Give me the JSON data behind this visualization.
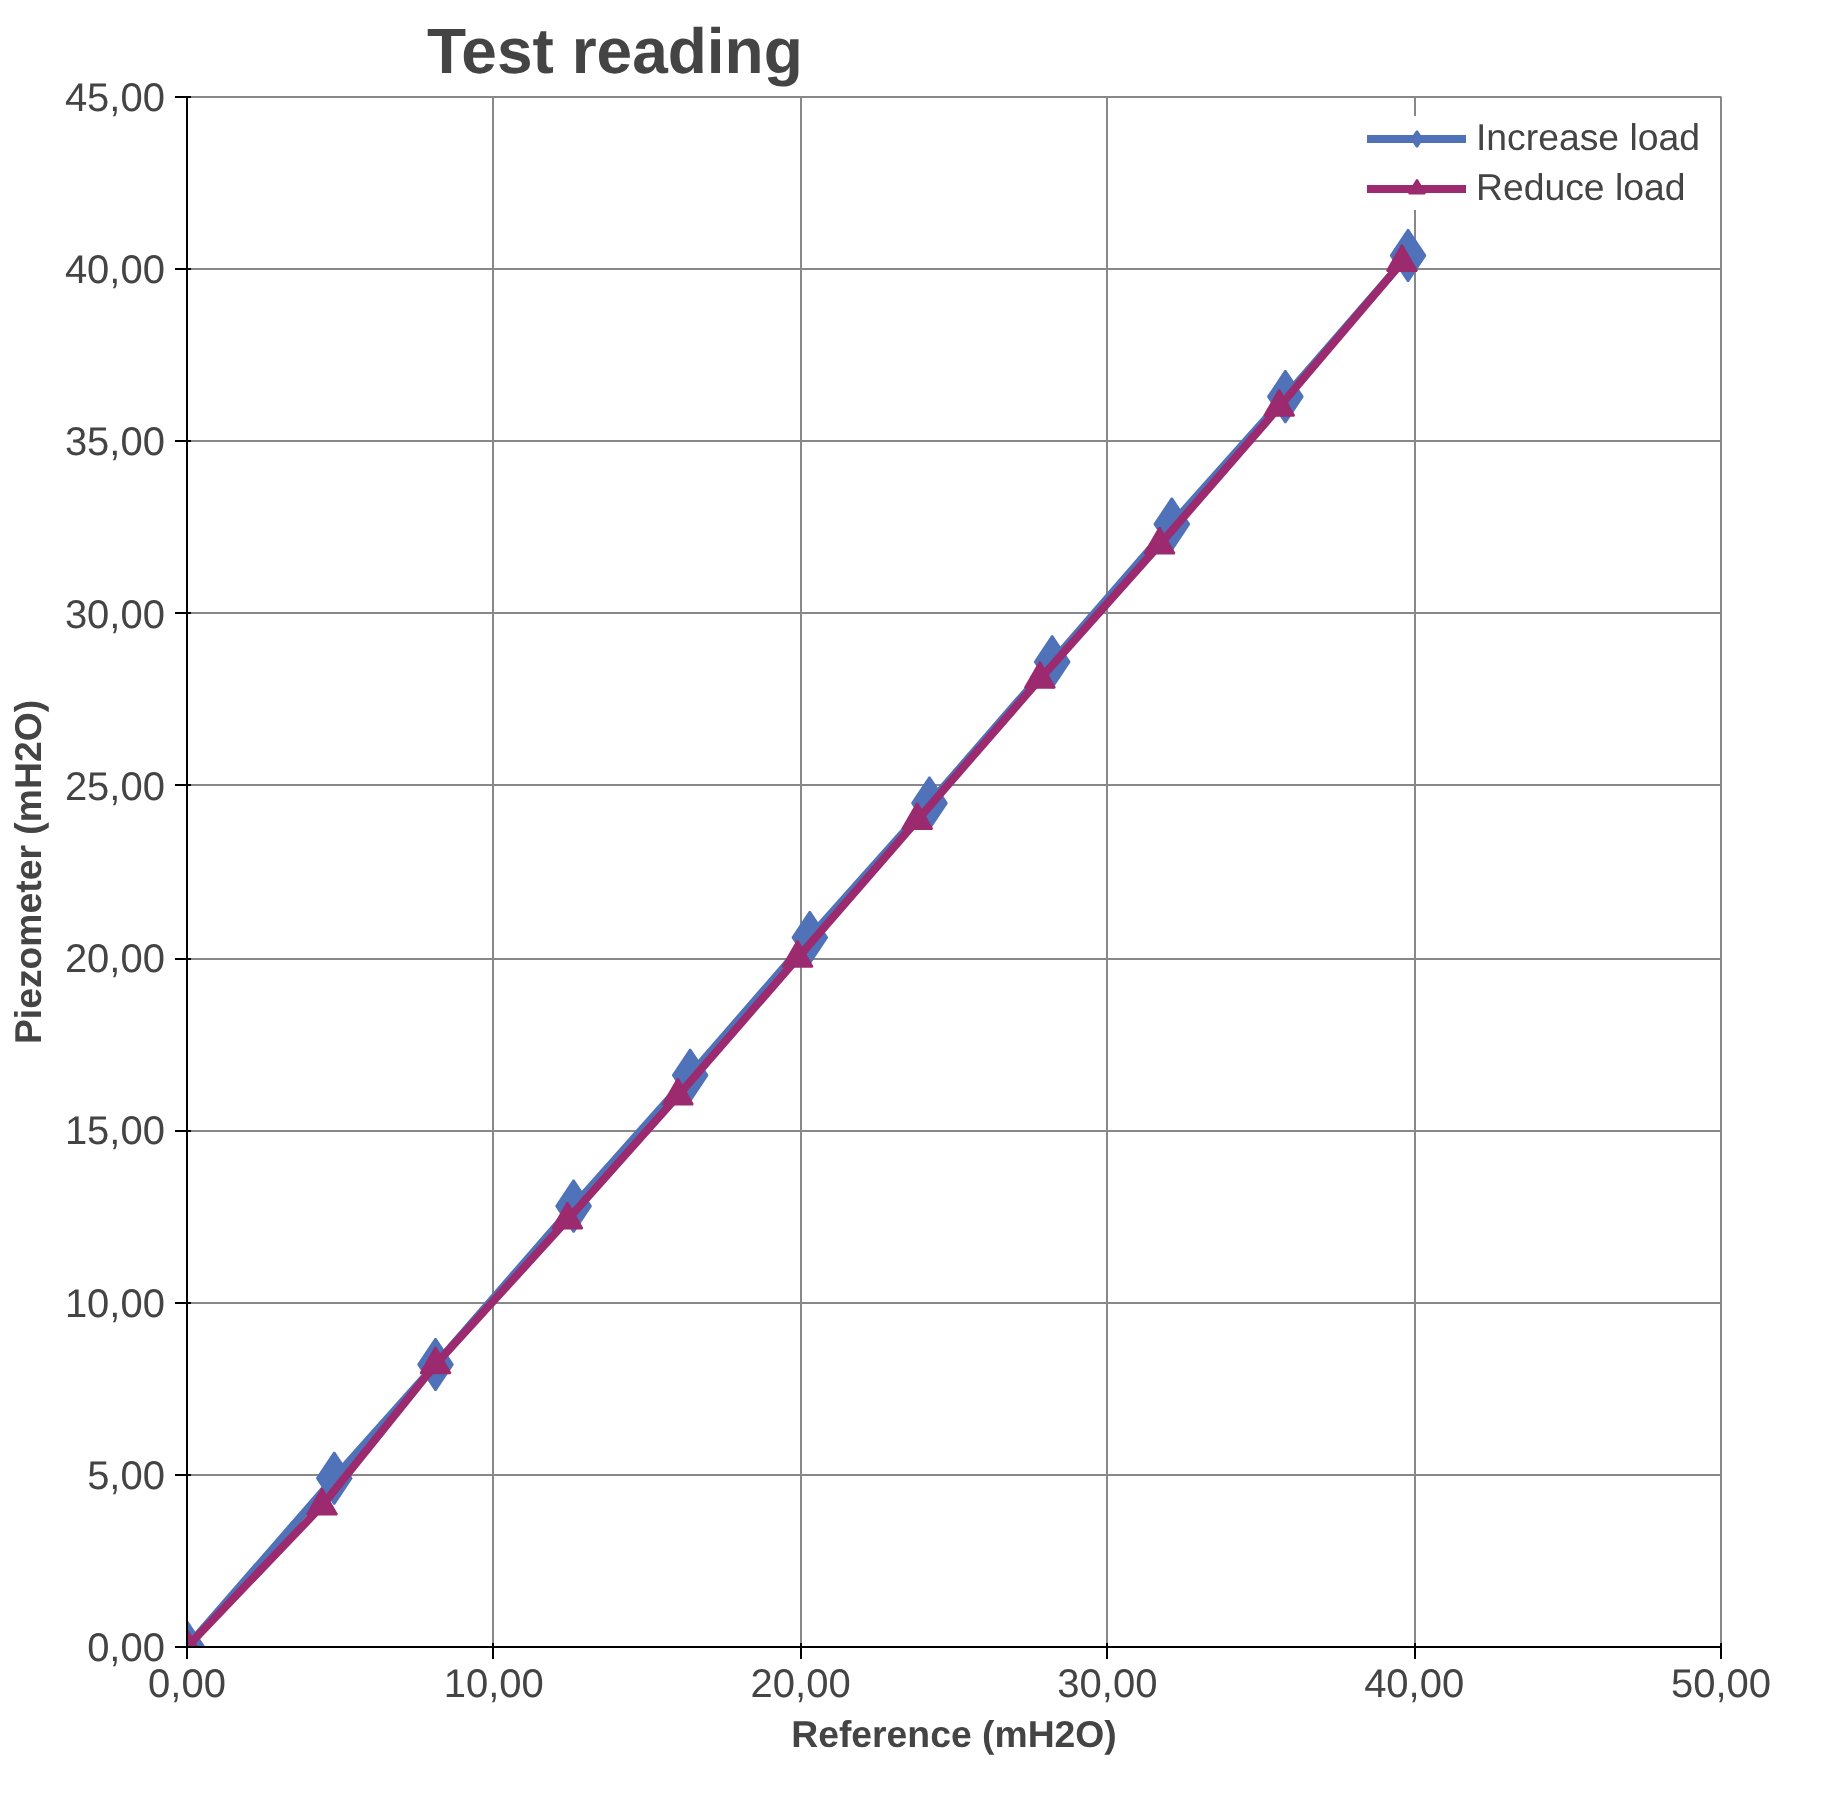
{
  "chart_data": {
    "type": "line",
    "title": "Test reading",
    "xlabel": "Reference (mH2O)",
    "ylabel": "Piezometer (mH2O)",
    "xlim": [
      0,
      50
    ],
    "ylim": [
      0,
      45
    ],
    "xticks": [
      {
        "value": 0,
        "label": "0,00"
      },
      {
        "value": 10,
        "label": "10,00"
      },
      {
        "value": 20,
        "label": "20,00"
      },
      {
        "value": 30,
        "label": "30,00"
      },
      {
        "value": 40,
        "label": "40,00"
      },
      {
        "value": 50,
        "label": "50,00"
      }
    ],
    "yticks": [
      {
        "value": 0,
        "label": "0,00"
      },
      {
        "value": 5,
        "label": "5,00"
      },
      {
        "value": 10,
        "label": "10,00"
      },
      {
        "value": 15,
        "label": "15,00"
      },
      {
        "value": 20,
        "label": "20,00"
      },
      {
        "value": 25,
        "label": "25,00"
      },
      {
        "value": 30,
        "label": "30,00"
      },
      {
        "value": 35,
        "label": "35,00"
      },
      {
        "value": 40,
        "label": "40,00"
      },
      {
        "value": 45,
        "label": "45,00"
      }
    ],
    "grid": true,
    "legend": "top right",
    "series": [
      {
        "name": "Increase load",
        "color": "#4f72b8",
        "marker": "diamond",
        "x": [
          0,
          4.8,
          8.1,
          12.6,
          16.4,
          20.3,
          24.2,
          28.2,
          32.1,
          35.8,
          39.8
        ],
        "values": [
          0,
          4.9,
          8.2,
          12.8,
          16.6,
          20.6,
          24.5,
          28.6,
          32.6,
          36.3,
          40.4
        ]
      },
      {
        "name": "Reduce load",
        "color": "#9c2a6e",
        "marker": "triangle",
        "x": [
          0,
          4.4,
          8.1,
          12.4,
          16.0,
          19.9,
          23.8,
          27.8,
          31.7,
          35.6,
          39.6
        ],
        "values": [
          0,
          4.1,
          8.2,
          12.4,
          16.0,
          20.0,
          24.0,
          28.1,
          32.0,
          36.0,
          40.2
        ]
      }
    ]
  }
}
